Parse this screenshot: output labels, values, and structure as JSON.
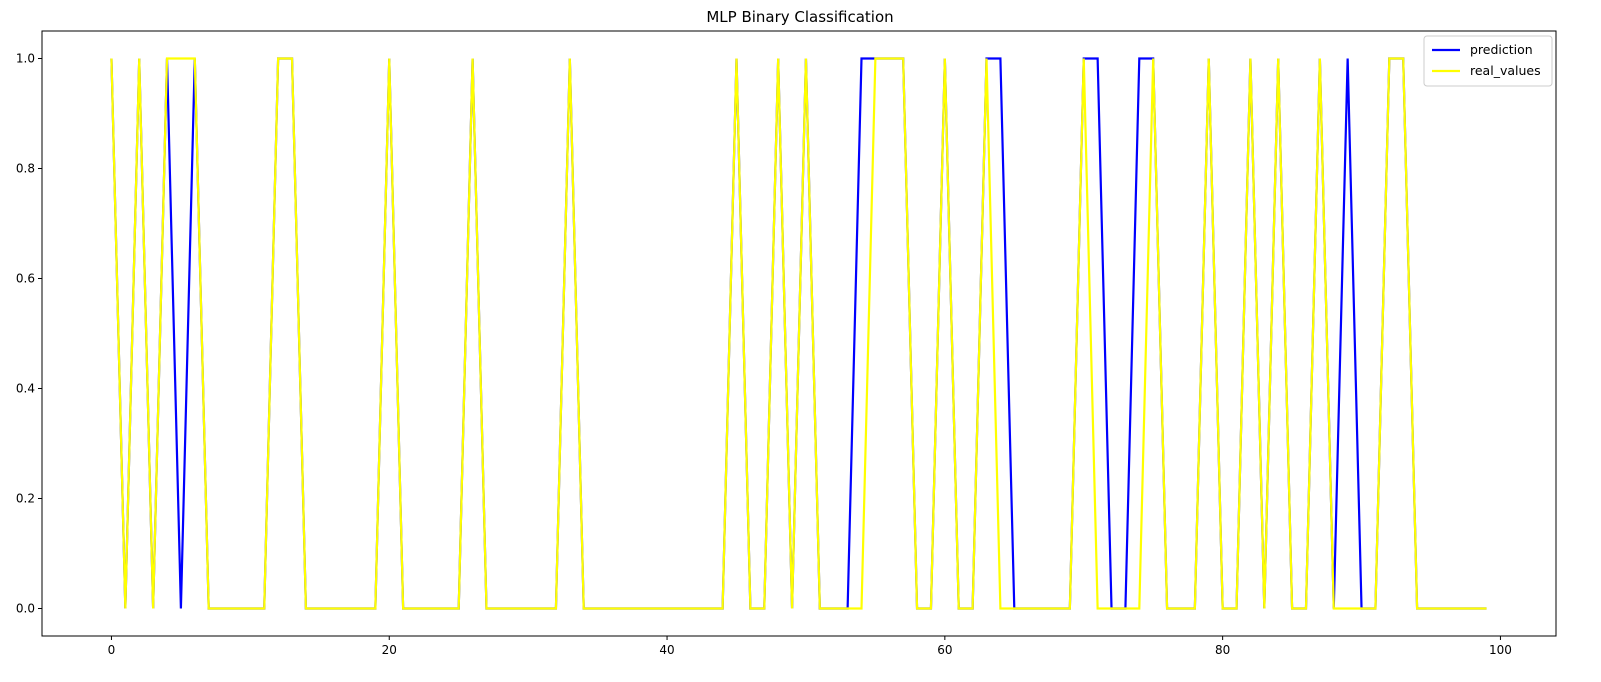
{
  "chart_data": {
    "type": "line",
    "title": "MLP Binary Classification",
    "xlabel": "",
    "ylabel": "",
    "xlim": [
      -5,
      104
    ],
    "ylim": [
      -0.05,
      1.05
    ],
    "x_ticks": [
      0,
      20,
      40,
      60,
      80,
      100
    ],
    "y_ticks": [
      0.0,
      0.2,
      0.4,
      0.6,
      0.8,
      1.0
    ],
    "x_tick_labels": [
      "0",
      "20",
      "40",
      "60",
      "80",
      "100"
    ],
    "y_tick_labels": [
      "0.0",
      "0.2",
      "0.4",
      "0.6",
      "0.8",
      "1.0"
    ],
    "grid": false,
    "legend_position": "top-right",
    "x": [
      0,
      1,
      2,
      3,
      4,
      5,
      6,
      7,
      8,
      9,
      10,
      11,
      12,
      13,
      14,
      15,
      16,
      17,
      18,
      19,
      20,
      21,
      22,
      23,
      24,
      25,
      26,
      27,
      28,
      29,
      30,
      31,
      32,
      33,
      34,
      35,
      36,
      37,
      38,
      39,
      40,
      41,
      42,
      43,
      44,
      45,
      46,
      47,
      48,
      49,
      50,
      51,
      52,
      53,
      54,
      55,
      56,
      57,
      58,
      59,
      60,
      61,
      62,
      63,
      64,
      65,
      66,
      67,
      68,
      69,
      70,
      71,
      72,
      73,
      74,
      75,
      76,
      77,
      78,
      79,
      80,
      81,
      82,
      83,
      84,
      85,
      86,
      87,
      88,
      89,
      90,
      91,
      92,
      93,
      94,
      95,
      96,
      97,
      98,
      99
    ],
    "series": [
      {
        "name": "prediction",
        "color": "#0000ff",
        "values": [
          1,
          0,
          1,
          0,
          1,
          0,
          1,
          0,
          0,
          0,
          0,
          0,
          1,
          1,
          0,
          0,
          0,
          0,
          0,
          0,
          1,
          0,
          0,
          0,
          0,
          0,
          1,
          0,
          0,
          0,
          0,
          0,
          0,
          1,
          0,
          0,
          0,
          0,
          0,
          0,
          0,
          0,
          0,
          0,
          0,
          1,
          0,
          0,
          1,
          0,
          1,
          0,
          0,
          0,
          1,
          1,
          1,
          1,
          0,
          0,
          1,
          0,
          0,
          1,
          1,
          0,
          0,
          0,
          0,
          0,
          1,
          1,
          0,
          0,
          1,
          1,
          0,
          0,
          0,
          1,
          0,
          0,
          1,
          0,
          1,
          0,
          0,
          1,
          0,
          1,
          0,
          0,
          1,
          1,
          0,
          0,
          0,
          0,
          0,
          0
        ]
      },
      {
        "name": "real_values",
        "color": "#ffff00",
        "values": [
          1,
          0,
          1,
          0,
          1,
          1,
          1,
          0,
          0,
          0,
          0,
          0,
          1,
          1,
          0,
          0,
          0,
          0,
          0,
          0,
          1,
          0,
          0,
          0,
          0,
          0,
          1,
          0,
          0,
          0,
          0,
          0,
          0,
          1,
          0,
          0,
          0,
          0,
          0,
          0,
          0,
          0,
          0,
          0,
          0,
          1,
          0,
          0,
          1,
          0,
          1,
          0,
          0,
          0,
          0,
          1,
          1,
          1,
          0,
          0,
          1,
          0,
          0,
          1,
          0,
          0,
          0,
          0,
          0,
          0,
          1,
          0,
          0,
          0,
          0,
          1,
          0,
          0,
          0,
          1,
          0,
          0,
          1,
          0,
          1,
          0,
          0,
          1,
          0,
          0,
          0,
          0,
          1,
          1,
          0,
          0,
          0,
          0,
          0,
          0
        ]
      }
    ]
  }
}
